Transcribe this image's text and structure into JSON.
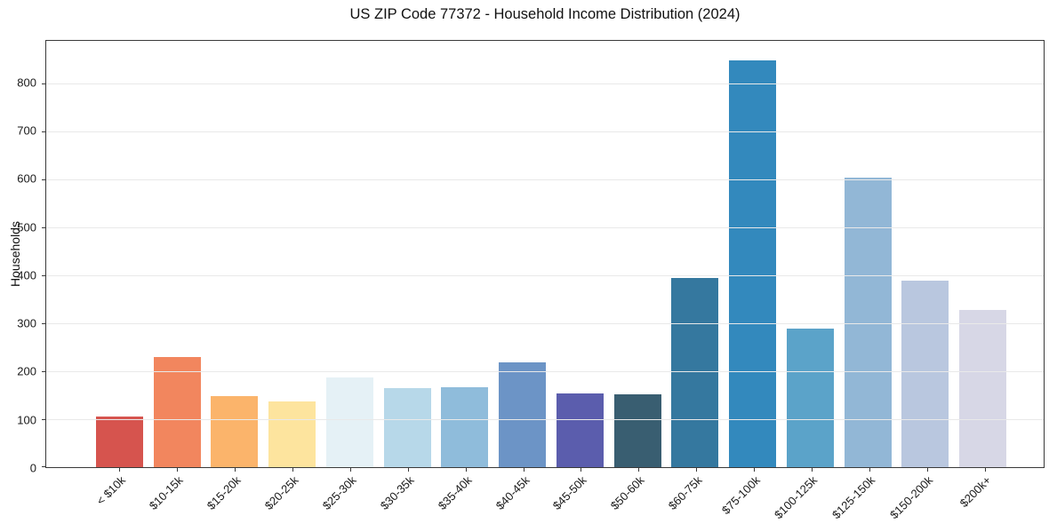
{
  "chart_data": {
    "type": "bar",
    "title": "US ZIP Code 77372 - Household Income Distribution (2024)",
    "xlabel": "",
    "ylabel": "Households",
    "categories": [
      "< $10k",
      "$10-15k",
      "$15-20k",
      "$20-25k",
      "$25-30k",
      "$30-35k",
      "$35-40k",
      "$40-45k",
      "$45-50k",
      "$50-60k",
      "$60-75k",
      "$75-100k",
      "$100-125k",
      "$125-150k",
      "$150-200k",
      "$200k+"
    ],
    "values": [
      105,
      229,
      148,
      137,
      186,
      165,
      166,
      219,
      154,
      151,
      395,
      848,
      288,
      604,
      389,
      327
    ],
    "bar_colors": [
      "#d6544e",
      "#f2865e",
      "#fbb46b",
      "#fde49e",
      "#e5f1f6",
      "#b7d8e9",
      "#8fbcdb",
      "#6c94c6",
      "#5b5dad",
      "#395e71",
      "#35789f",
      "#3389bd",
      "#5ba3c9",
      "#92b7d6",
      "#b9c7df",
      "#d7d7e6"
    ],
    "ylim": [
      0,
      888
    ],
    "yticks": [
      0,
      100,
      200,
      300,
      400,
      500,
      600,
      700,
      800
    ],
    "grid": "horizontal",
    "grid_color": "#e9e9e9",
    "spine_color": "#3a3a3a",
    "text_color": "#1a1a1a",
    "legend": "none"
  }
}
